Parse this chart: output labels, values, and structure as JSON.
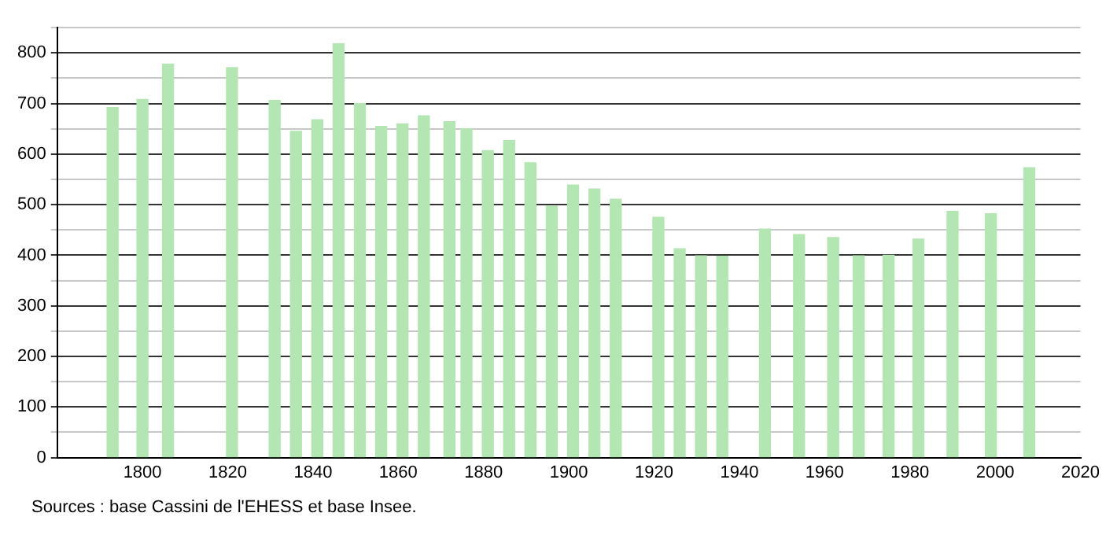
{
  "chart_data": {
    "type": "bar",
    "x": [
      1793,
      1800,
      1806,
      1821,
      1831,
      1836,
      1841,
      1846,
      1851,
      1856,
      1861,
      1866,
      1872,
      1876,
      1881,
      1886,
      1891,
      1896,
      1901,
      1906,
      1911,
      1921,
      1926,
      1931,
      1936,
      1946,
      1954,
      1962,
      1968,
      1975,
      1982,
      1990,
      1999,
      2008
    ],
    "series": [
      {
        "color": "#b3e6b3",
        "values": [
          692,
          708,
          778,
          771,
          706,
          645,
          668,
          818,
          700,
          655,
          660,
          676,
          664,
          650,
          607,
          627,
          583,
          497,
          539,
          531,
          511,
          475,
          413,
          399,
          398,
          452,
          441,
          435,
          399,
          400,
          432,
          487,
          482,
          573
        ]
      }
    ],
    "xlim": [
      1780,
      2020
    ],
    "xticks": [
      1800,
      1820,
      1840,
      1860,
      1880,
      1900,
      1920,
      1940,
      1960,
      1980,
      2000,
      2020
    ],
    "ylim": [
      0,
      850
    ],
    "yticks": [
      0,
      {
        "value": 50,
        "label": null
      },
      100,
      {
        "value": 150,
        "label": null
      },
      200,
      {
        "value": 250,
        "label": null
      },
      300,
      {
        "value": 350,
        "label": null
      },
      400,
      {
        "value": 450,
        "label": null
      },
      500,
      {
        "value": 550,
        "label": null
      },
      600,
      {
        "value": 650,
        "label": null
      },
      700,
      {
        "value": 750,
        "label": null
      },
      800,
      {
        "value": 850,
        "label": null
      }
    ],
    "grid": "y",
    "legend": false,
    "annotations": [
      "Sources : base Cassini de l'EHESS et base Insee."
    ]
  }
}
